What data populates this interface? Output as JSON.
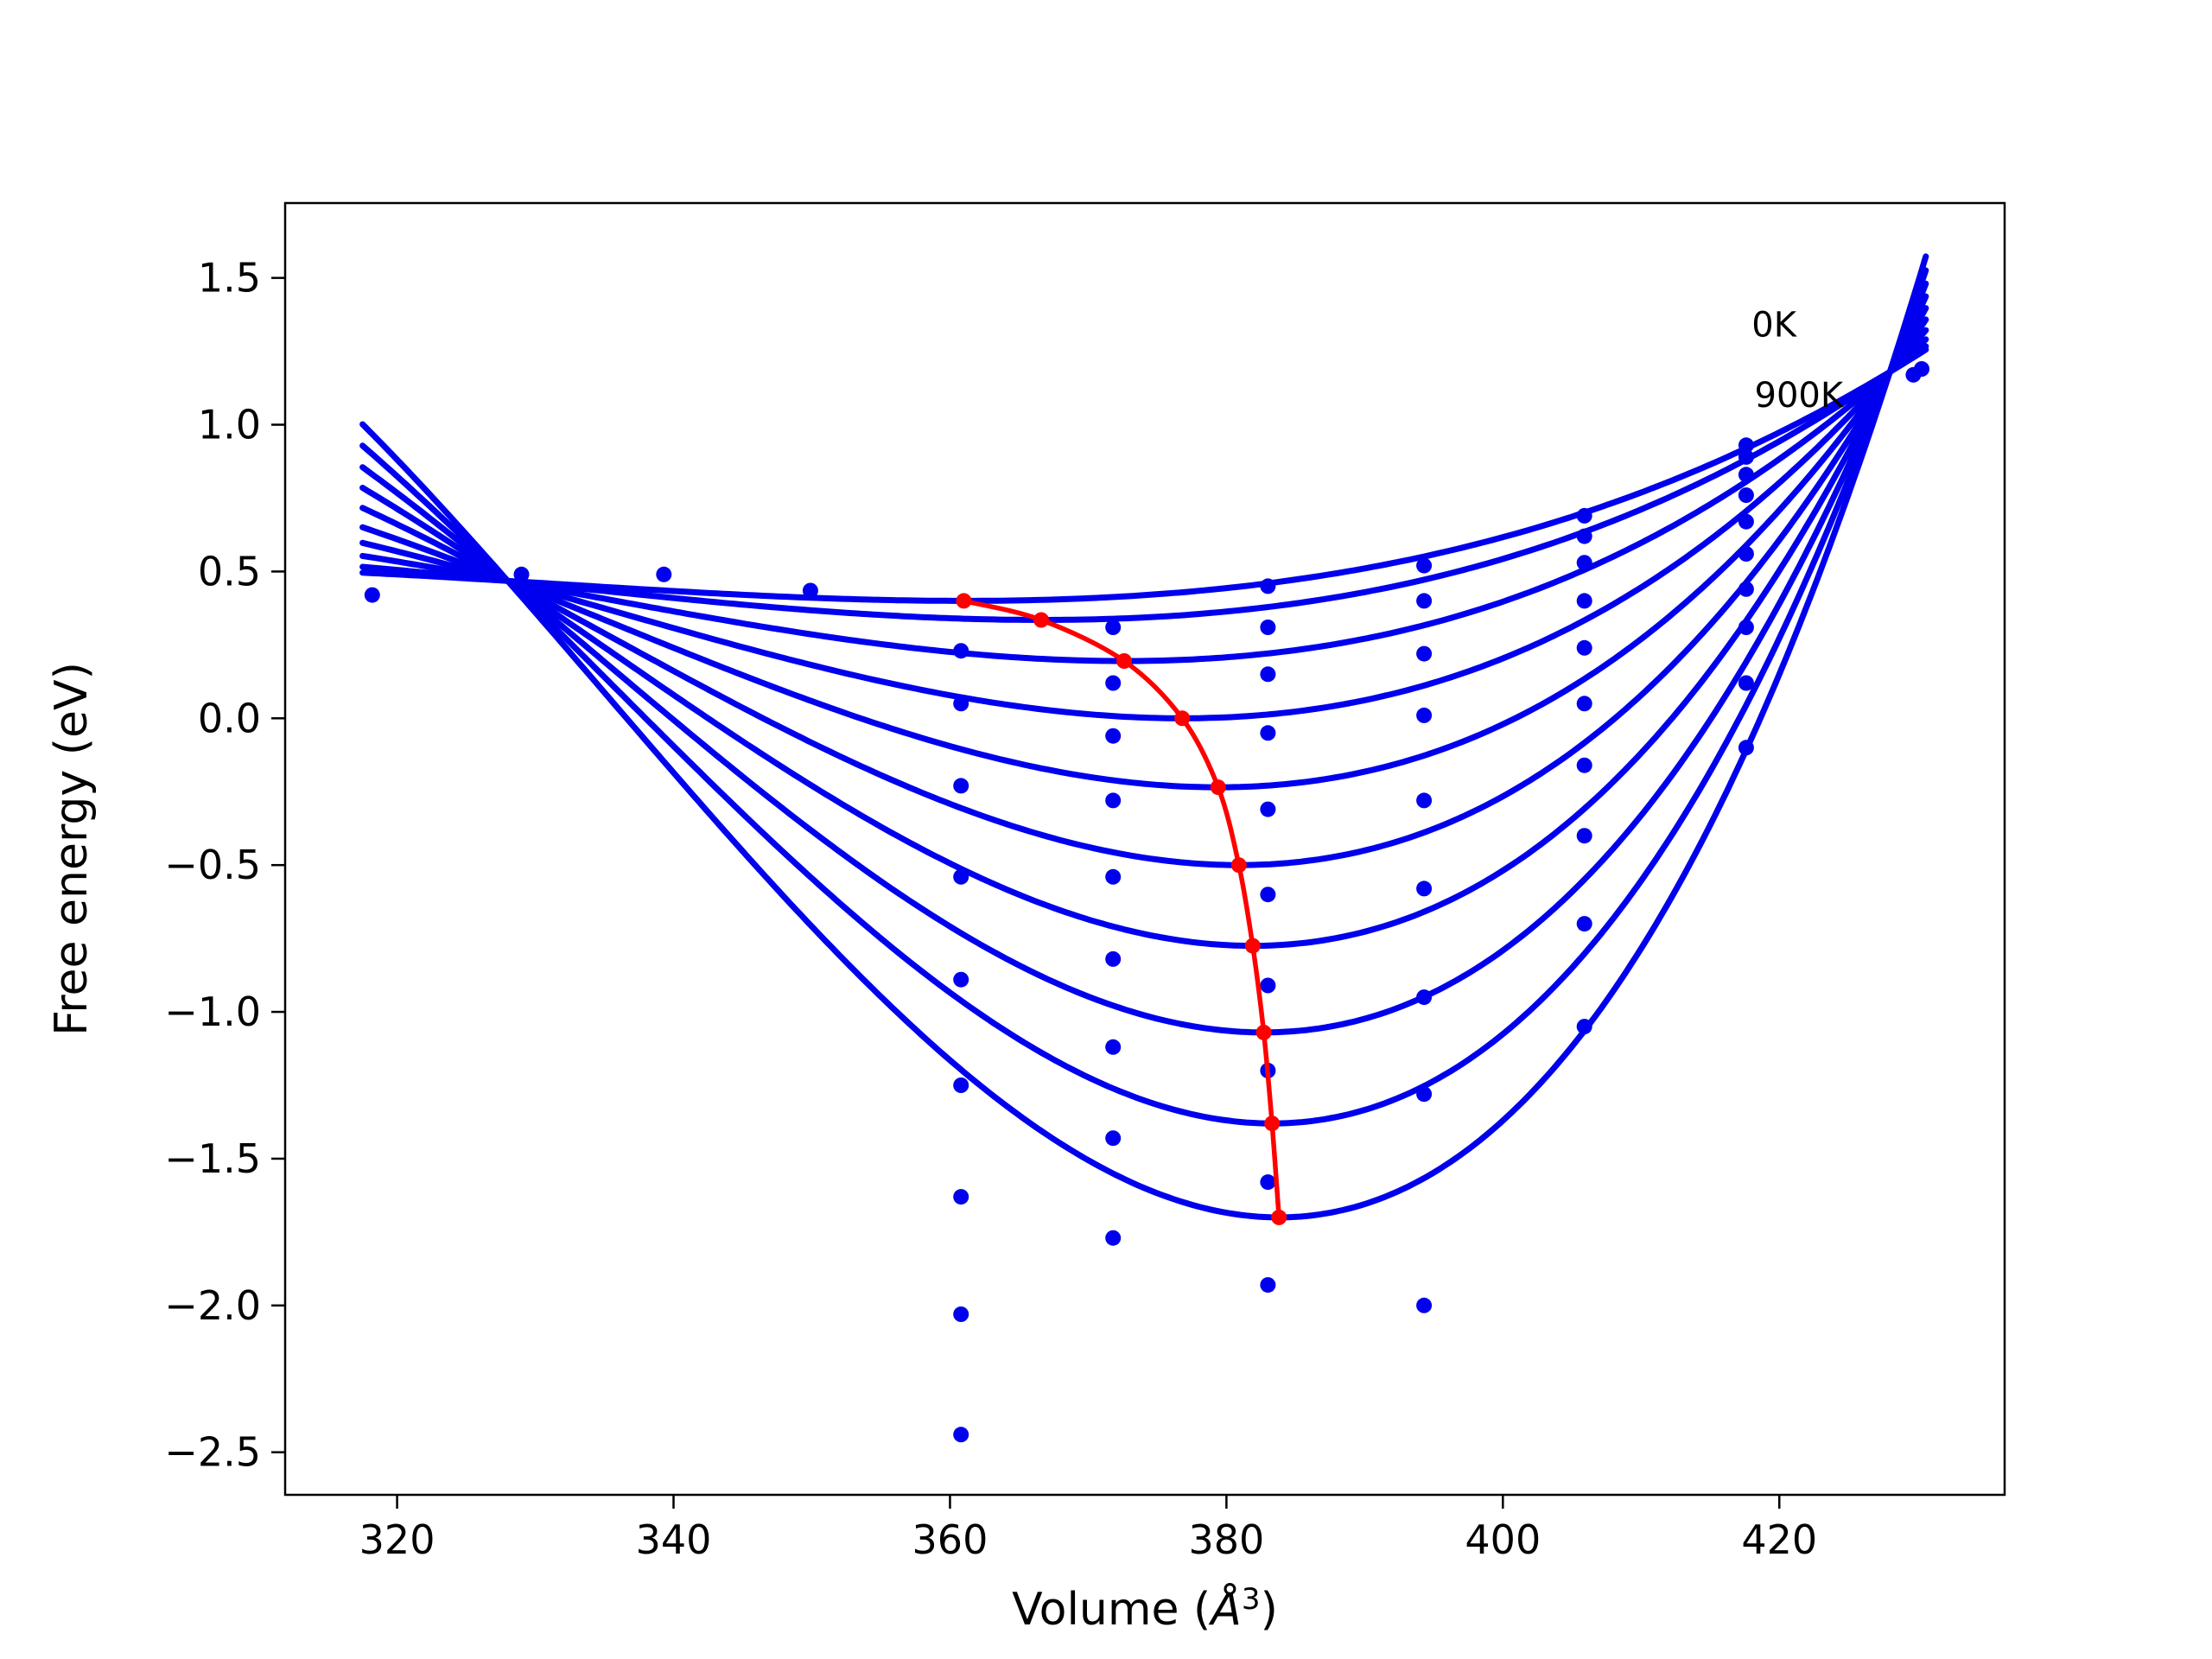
{
  "page": {
    "background": "#ffffff"
  },
  "chart_data": {
    "type": "line",
    "title": "",
    "xlabel": {
      "text": "Volume (Å³)",
      "prefix": "Volume (",
      "unit_symbol": "Å",
      "unit_exponent": "3",
      "suffix": ")"
    },
    "ylabel": "Free energy (eV)",
    "xlim": [
      311.9,
      436.3
    ],
    "ylim": [
      -2.645,
      1.755
    ],
    "grid": false,
    "legend_position": "none",
    "xticks": [
      {
        "value": 320,
        "label": "320"
      },
      {
        "value": 340,
        "label": "340"
      },
      {
        "value": 360,
        "label": "360"
      },
      {
        "value": 380,
        "label": "380"
      },
      {
        "value": 400,
        "label": "400"
      },
      {
        "value": 420,
        "label": "420"
      }
    ],
    "yticks": [
      {
        "value": 1.5,
        "label": "1.5"
      },
      {
        "value": 1.0,
        "label": "1.0"
      },
      {
        "value": 0.5,
        "label": "0.5"
      },
      {
        "value": 0.0,
        "label": "0.0"
      },
      {
        "value": -0.5,
        "label": "−0.5"
      },
      {
        "value": -1.0,
        "label": "−1.0"
      },
      {
        "value": -1.5,
        "label": "−1.5"
      },
      {
        "value": -2.0,
        "label": "−2.0"
      },
      {
        "value": -2.5,
        "label": "−2.5"
      }
    ],
    "colors": {
      "curve": "#0000ee",
      "point": "#0000ee",
      "equilibrium": "#ff0000",
      "axis": "#000000",
      "background": "#ffffff"
    },
    "annotations": [
      {
        "text": "0K",
        "x": 418.0,
        "y": 1.3
      },
      {
        "text": "900K",
        "x": 418.2,
        "y": 1.06
      }
    ],
    "eos_model": {
      "form": "cubic through shared crossing points",
      "pinch_left": [
        328.0,
        0.468
      ],
      "pinch_right": [
        428.0,
        1.18
      ],
      "curve_v_range": [
        317.5,
        430.6
      ]
    },
    "series": [
      {
        "temperature_K": 0,
        "minimum_volume": 361.0,
        "minimum_free_energy": 0.4
      },
      {
        "temperature_K": 100,
        "minimum_volume": 366.6,
        "minimum_free_energy": 0.335
      },
      {
        "temperature_K": 200,
        "minimum_volume": 372.6,
        "minimum_free_energy": 0.195
      },
      {
        "temperature_K": 300,
        "minimum_volume": 376.8,
        "minimum_free_energy": 0.0
      },
      {
        "temperature_K": 400,
        "minimum_volume": 379.4,
        "minimum_free_energy": -0.235
      },
      {
        "temperature_K": 500,
        "minimum_volume": 380.9,
        "minimum_free_energy": -0.5
      },
      {
        "temperature_K": 600,
        "minimum_volume": 381.9,
        "minimum_free_energy": -0.775
      },
      {
        "temperature_K": 700,
        "minimum_volume": 382.7,
        "minimum_free_energy": -1.07
      },
      {
        "temperature_K": 800,
        "minimum_volume": 383.3,
        "minimum_free_energy": -1.38
      },
      {
        "temperature_K": 900,
        "minimum_volume": 383.8,
        "minimum_free_energy": -1.7
      }
    ],
    "equilibrium_path_points": [
      [
        361.0,
        0.4
      ],
      [
        366.6,
        0.335
      ],
      [
        372.6,
        0.195
      ],
      [
        376.8,
        0.0
      ],
      [
        379.4,
        -0.235
      ],
      [
        380.9,
        -0.5
      ],
      [
        381.9,
        -0.775
      ],
      [
        382.7,
        -1.07
      ],
      [
        383.3,
        -1.38
      ],
      [
        383.8,
        -1.7
      ]
    ],
    "scatter_points": [
      [
        318.2,
        0.42
      ],
      [
        329.0,
        0.49
      ],
      [
        330.1,
        0.445
      ],
      [
        339.3,
        0.49
      ],
      [
        349.9,
        0.435
      ],
      [
        360.8,
        0.23
      ],
      [
        360.8,
        0.05
      ],
      [
        360.8,
        -0.23
      ],
      [
        360.8,
        -0.54
      ],
      [
        360.8,
        -0.89
      ],
      [
        360.8,
        -1.25
      ],
      [
        360.8,
        -1.63
      ],
      [
        360.8,
        -2.03
      ],
      [
        360.8,
        -2.44
      ],
      [
        371.8,
        0.31
      ],
      [
        371.8,
        0.12
      ],
      [
        371.8,
        -0.06
      ],
      [
        371.8,
        -0.28
      ],
      [
        371.8,
        -0.54
      ],
      [
        371.8,
        -0.82
      ],
      [
        371.8,
        -1.12
      ],
      [
        371.8,
        -1.43
      ],
      [
        371.8,
        -1.77
      ],
      [
        383.0,
        0.45
      ],
      [
        383.0,
        0.31
      ],
      [
        383.0,
        0.15
      ],
      [
        383.0,
        -0.05
      ],
      [
        383.0,
        -0.31
      ],
      [
        383.0,
        -0.6
      ],
      [
        383.0,
        -0.91
      ],
      [
        383.0,
        -1.2
      ],
      [
        383.0,
        -1.58
      ],
      [
        383.0,
        -1.93
      ],
      [
        394.3,
        0.52
      ],
      [
        394.3,
        0.4
      ],
      [
        394.3,
        0.22
      ],
      [
        394.3,
        0.01
      ],
      [
        394.3,
        -0.28
      ],
      [
        394.3,
        -0.58
      ],
      [
        394.3,
        -0.95
      ],
      [
        394.3,
        -1.28
      ],
      [
        394.3,
        -2.0
      ],
      [
        405.9,
        0.69
      ],
      [
        405.9,
        0.62
      ],
      [
        405.9,
        0.53
      ],
      [
        405.9,
        0.4
      ],
      [
        405.9,
        0.24
      ],
      [
        405.9,
        0.05
      ],
      [
        405.9,
        -0.16
      ],
      [
        405.9,
        -0.4
      ],
      [
        405.9,
        -0.7
      ],
      [
        405.9,
        -1.05
      ],
      [
        417.6,
        0.93
      ],
      [
        417.6,
        0.89
      ],
      [
        417.6,
        0.83
      ],
      [
        417.6,
        0.76
      ],
      [
        417.6,
        0.67
      ],
      [
        417.6,
        0.56
      ],
      [
        417.6,
        0.44
      ],
      [
        417.6,
        0.31
      ],
      [
        417.6,
        0.12
      ],
      [
        417.6,
        -0.1
      ],
      [
        429.7,
        1.17
      ],
      [
        430.3,
        1.19
      ]
    ]
  }
}
